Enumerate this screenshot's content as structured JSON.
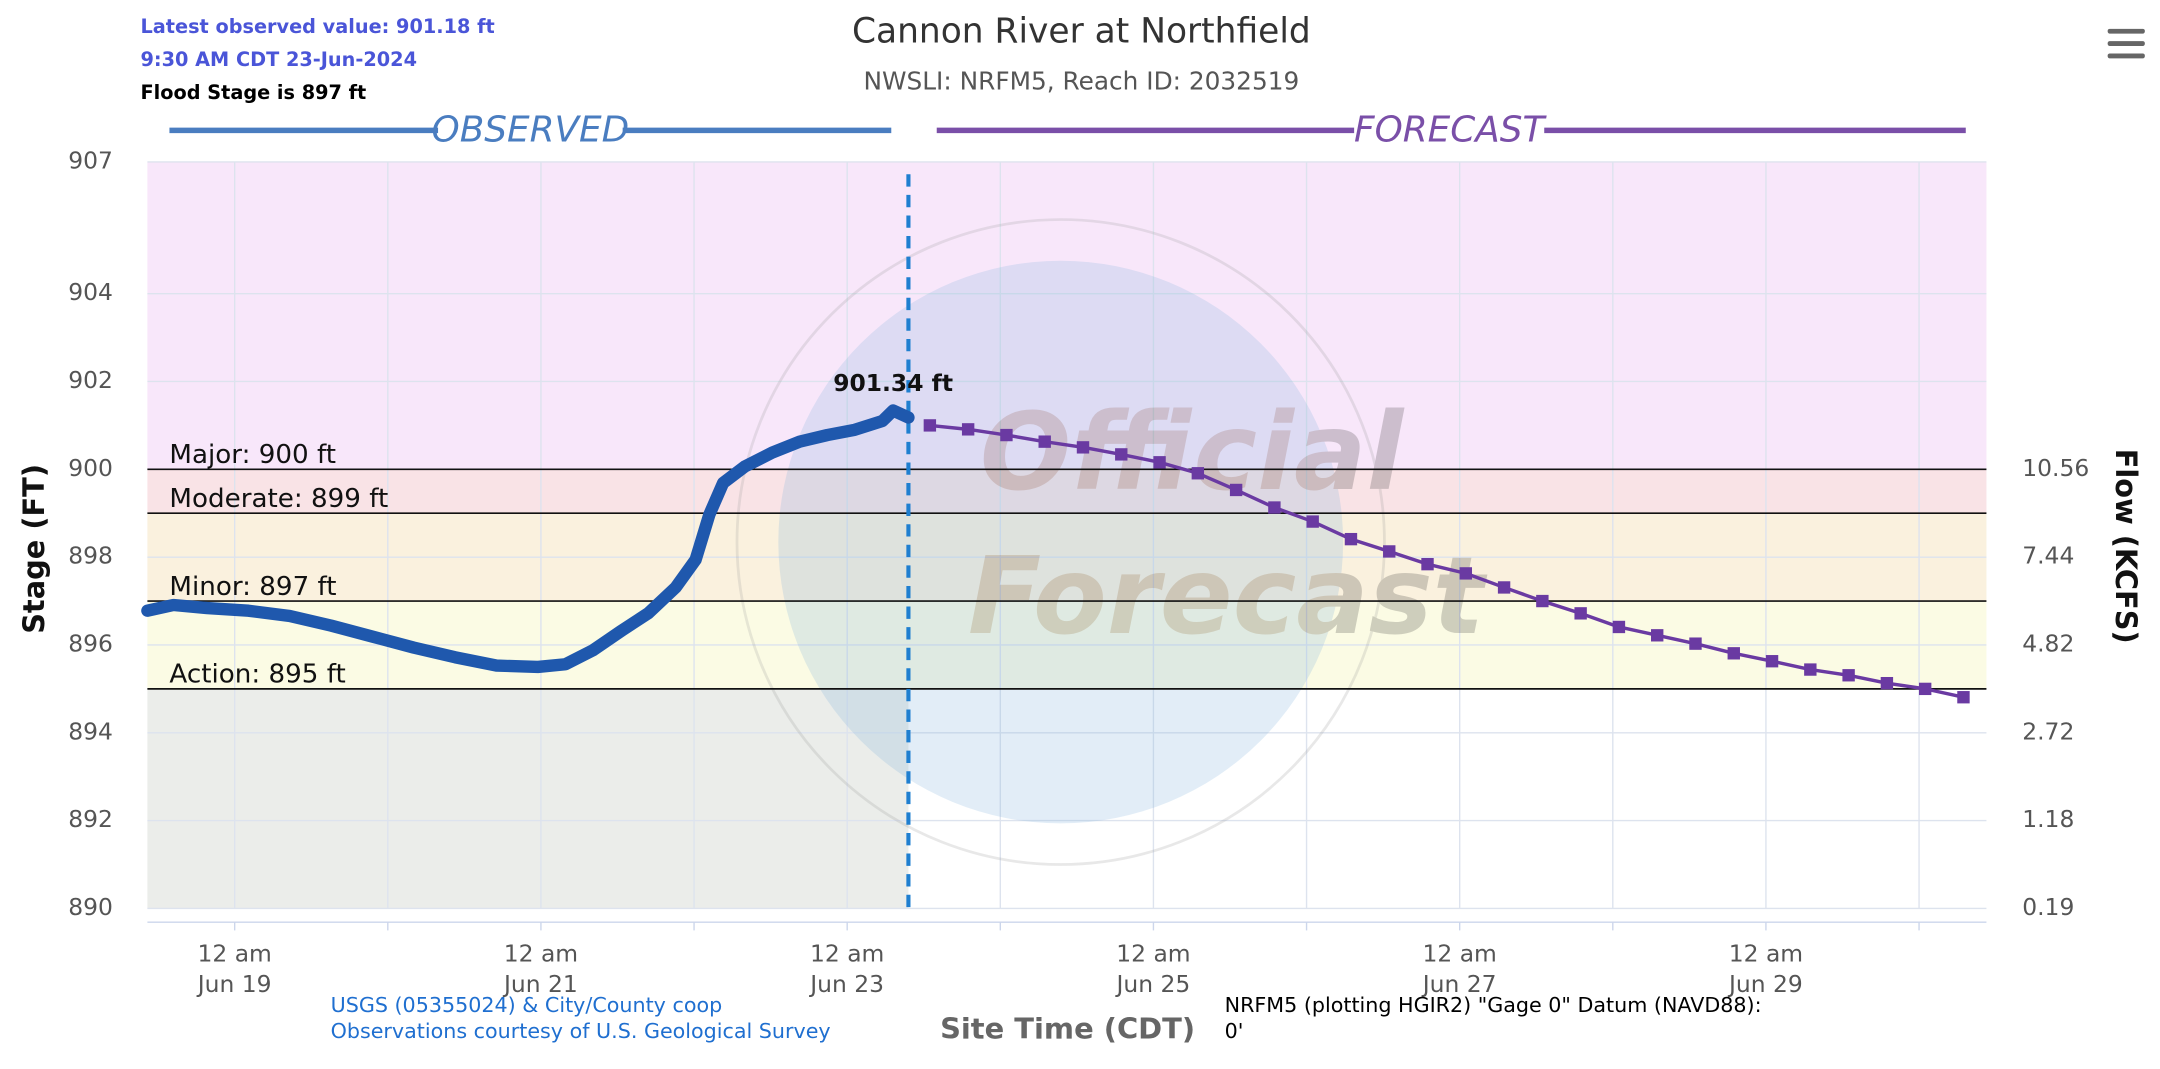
{
  "chart_data": {
    "type": "hydrograph",
    "title": "Cannon River at Northfield",
    "subtitle": "NWSLI: NRFM5, Reach ID: 2032519",
    "header": [
      "Latest observed value: 901.18 ft",
      "9:30 AM CDT 23-Jun-2024",
      "Flood Stage is 897 ft"
    ],
    "section_labels": [
      "OBSERVED",
      "FORECAST"
    ],
    "y_label": "Stage (FT)",
    "y2_label": "Flow (KCFS)",
    "x_label": "Site Time (CDT)",
    "credits": [
      "USGS (05355024) & City/County coop",
      "Observations courtesy of U.S. Geological Survey"
    ],
    "datum_note": [
      "NRFM5 (plotting HGIR2) \"Gage 0\" Datum (NAVD88):",
      "0'"
    ],
    "watermark": [
      "Official",
      "Forecast"
    ],
    "annotation": {
      "label": "901.34 ft",
      "value": 901.34,
      "x": 23.3
    },
    "xlim": [
      18.43,
      30.44
    ],
    "xticks": [
      {
        "value": 19,
        "label": [
          "12 am",
          "Jun 19"
        ]
      },
      {
        "value": 21,
        "label": [
          "12 am",
          "Jun 21"
        ]
      },
      {
        "value": 23,
        "label": [
          "12 am",
          "Jun 23"
        ]
      },
      {
        "value": 25,
        "label": [
          "12 am",
          "Jun 25"
        ]
      },
      {
        "value": 27,
        "label": [
          "12 am",
          "Jun 27"
        ]
      },
      {
        "value": 29,
        "label": [
          "12 am",
          "Jun 29"
        ]
      }
    ],
    "xminor": [
      20,
      22,
      24,
      26,
      28,
      30
    ],
    "ylim": [
      890,
      907
    ],
    "yticks": [
      890,
      892,
      894,
      896,
      898,
      900,
      902,
      904,
      907
    ],
    "y2ticks": [
      {
        "value": 0.19,
        "stage": 890
      },
      {
        "value": 1.18,
        "stage": 892
      },
      {
        "value": 2.72,
        "stage": 894
      },
      {
        "value": 4.82,
        "stage": 896
      },
      {
        "value": 7.44,
        "stage": 898
      },
      {
        "value": 10.56,
        "stage": 900
      }
    ],
    "grid": true,
    "thresholds": [
      {
        "label": "Action: 895 ft",
        "value": 895,
        "color": "#fbfbe4"
      },
      {
        "label": "Minor: 897 ft",
        "value": 897,
        "color": "#faf1de"
      },
      {
        "label": "Moderate: 899 ft",
        "value": 899,
        "color": "#f9e3e6"
      },
      {
        "label": "Major: 900 ft",
        "value": 900,
        "color": "#f8e7fa"
      }
    ],
    "observed_shade": "#ebedea",
    "series": [
      {
        "name": "Observed",
        "color": "#1f58ad",
        "x": [
          18.43,
          18.6,
          18.82,
          19.09,
          19.36,
          19.63,
          19.9,
          20.17,
          20.44,
          20.71,
          20.98,
          21.16,
          21.34,
          21.52,
          21.7,
          21.88,
          22.01,
          22.1,
          22.19,
          22.33,
          22.51,
          22.69,
          22.87,
          23.05,
          23.23,
          23.3,
          23.4
        ],
        "values": [
          896.78,
          896.91,
          896.84,
          896.78,
          896.66,
          896.44,
          896.19,
          895.94,
          895.72,
          895.53,
          895.5,
          895.56,
          895.88,
          896.31,
          896.72,
          897.31,
          897.94,
          898.97,
          899.69,
          900.06,
          900.38,
          900.63,
          900.78,
          900.9,
          901.1,
          901.34,
          901.18
        ]
      },
      {
        "name": "Forecast",
        "color": "#6a3aa2",
        "x": [
          23.54,
          23.79,
          24.04,
          24.29,
          24.54,
          24.79,
          25.04,
          25.29,
          25.54,
          25.79,
          26.04,
          26.29,
          26.54,
          26.79,
          27.04,
          27.29,
          27.54,
          27.79,
          28.04,
          28.29,
          28.54,
          28.79,
          29.04,
          29.29,
          29.54,
          29.79,
          30.04,
          30.29
        ],
        "values": [
          901.0,
          900.91,
          900.78,
          900.63,
          900.5,
          900.34,
          900.16,
          899.91,
          899.53,
          899.13,
          898.81,
          898.41,
          898.13,
          897.84,
          897.63,
          897.31,
          897.0,
          896.72,
          896.41,
          896.22,
          896.03,
          895.81,
          895.63,
          895.44,
          895.31,
          895.13,
          895.0,
          894.81
        ]
      }
    ]
  }
}
